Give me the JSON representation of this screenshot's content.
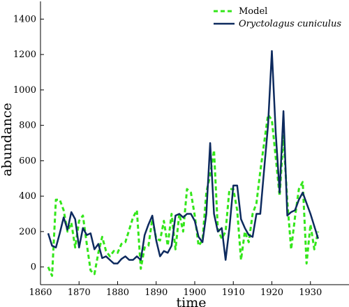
{
  "chart_data": {
    "type": "line",
    "xlabel": "time",
    "ylabel": "abundance",
    "xlim": [
      1860,
      1940
    ],
    "ylim": [
      -100,
      1500
    ],
    "xticks": [
      1860,
      1870,
      1880,
      1890,
      1900,
      1910,
      1920,
      1930
    ],
    "yticks": [
      0,
      200,
      400,
      600,
      800,
      1000,
      1200,
      1400
    ],
    "legend_position": "top-right",
    "grid": false,
    "series": [
      {
        "name": "Model",
        "style": "dashed",
        "color": "#33e61a",
        "x": [
          1862,
          1863,
          1864,
          1865,
          1866,
          1867,
          1868,
          1869,
          1870,
          1871,
          1872,
          1873,
          1874,
          1875,
          1876,
          1877,
          1878,
          1879,
          1880,
          1881,
          1882,
          1883,
          1884,
          1885,
          1886,
          1887,
          1888,
          1889,
          1890,
          1891,
          1892,
          1893,
          1894,
          1895,
          1896,
          1897,
          1898,
          1899,
          1900,
          1901,
          1902,
          1903,
          1904,
          1905,
          1906,
          1907,
          1908,
          1909,
          1910,
          1911,
          1912,
          1913,
          1914,
          1915,
          1916,
          1917,
          1918,
          1919,
          1920,
          1921,
          1922,
          1923,
          1924,
          1925,
          1926,
          1927,
          1928,
          1929,
          1930,
          1931,
          1932
        ],
        "values": [
          0,
          -50,
          380,
          380,
          320,
          200,
          250,
          110,
          260,
          290,
          130,
          -20,
          -40,
          80,
          170,
          90,
          60,
          90,
          80,
          130,
          140,
          210,
          280,
          320,
          -10,
          110,
          120,
          270,
          160,
          150,
          260,
          120,
          300,
          100,
          300,
          200,
          440,
          420,
          290,
          120,
          150,
          420,
          520,
          660,
          210,
          160,
          200,
          440,
          440,
          320,
          40,
          200,
          140,
          300,
          360,
          540,
          700,
          860,
          830,
          620,
          400,
          740,
          370,
          100,
          280,
          440,
          480,
          20,
          240,
          100,
          200
        ]
      },
      {
        "name": "Oryctolagus cuniculus",
        "style": "solid",
        "color": "#0d2a5e",
        "x": [
          1862,
          1863,
          1864,
          1865,
          1866,
          1867,
          1868,
          1869,
          1870,
          1871,
          1872,
          1873,
          1874,
          1875,
          1876,
          1877,
          1878,
          1879,
          1880,
          1881,
          1882,
          1883,
          1884,
          1885,
          1886,
          1887,
          1888,
          1889,
          1890,
          1891,
          1892,
          1893,
          1894,
          1895,
          1896,
          1897,
          1898,
          1899,
          1900,
          1901,
          1902,
          1903,
          1904,
          1905,
          1906,
          1907,
          1908,
          1909,
          1910,
          1911,
          1912,
          1913,
          1914,
          1915,
          1916,
          1917,
          1918,
          1919,
          1920,
          1921,
          1922,
          1923,
          1924,
          1925,
          1926,
          1927,
          1928,
          1929,
          1930,
          1931,
          1932
        ],
        "values": [
          190,
          120,
          110,
          190,
          280,
          210,
          310,
          270,
          110,
          220,
          180,
          190,
          100,
          130,
          50,
          60,
          40,
          20,
          20,
          45,
          60,
          40,
          40,
          60,
          40,
          180,
          240,
          290,
          150,
          60,
          90,
          80,
          120,
          290,
          300,
          280,
          300,
          300,
          260,
          170,
          140,
          300,
          700,
          300,
          200,
          220,
          40,
          220,
          460,
          460,
          270,
          220,
          180,
          170,
          300,
          300,
          550,
          800,
          1220,
          760,
          420,
          880,
          290,
          310,
          320,
          380,
          420,
          360,
          300,
          230,
          160
        ]
      }
    ]
  }
}
